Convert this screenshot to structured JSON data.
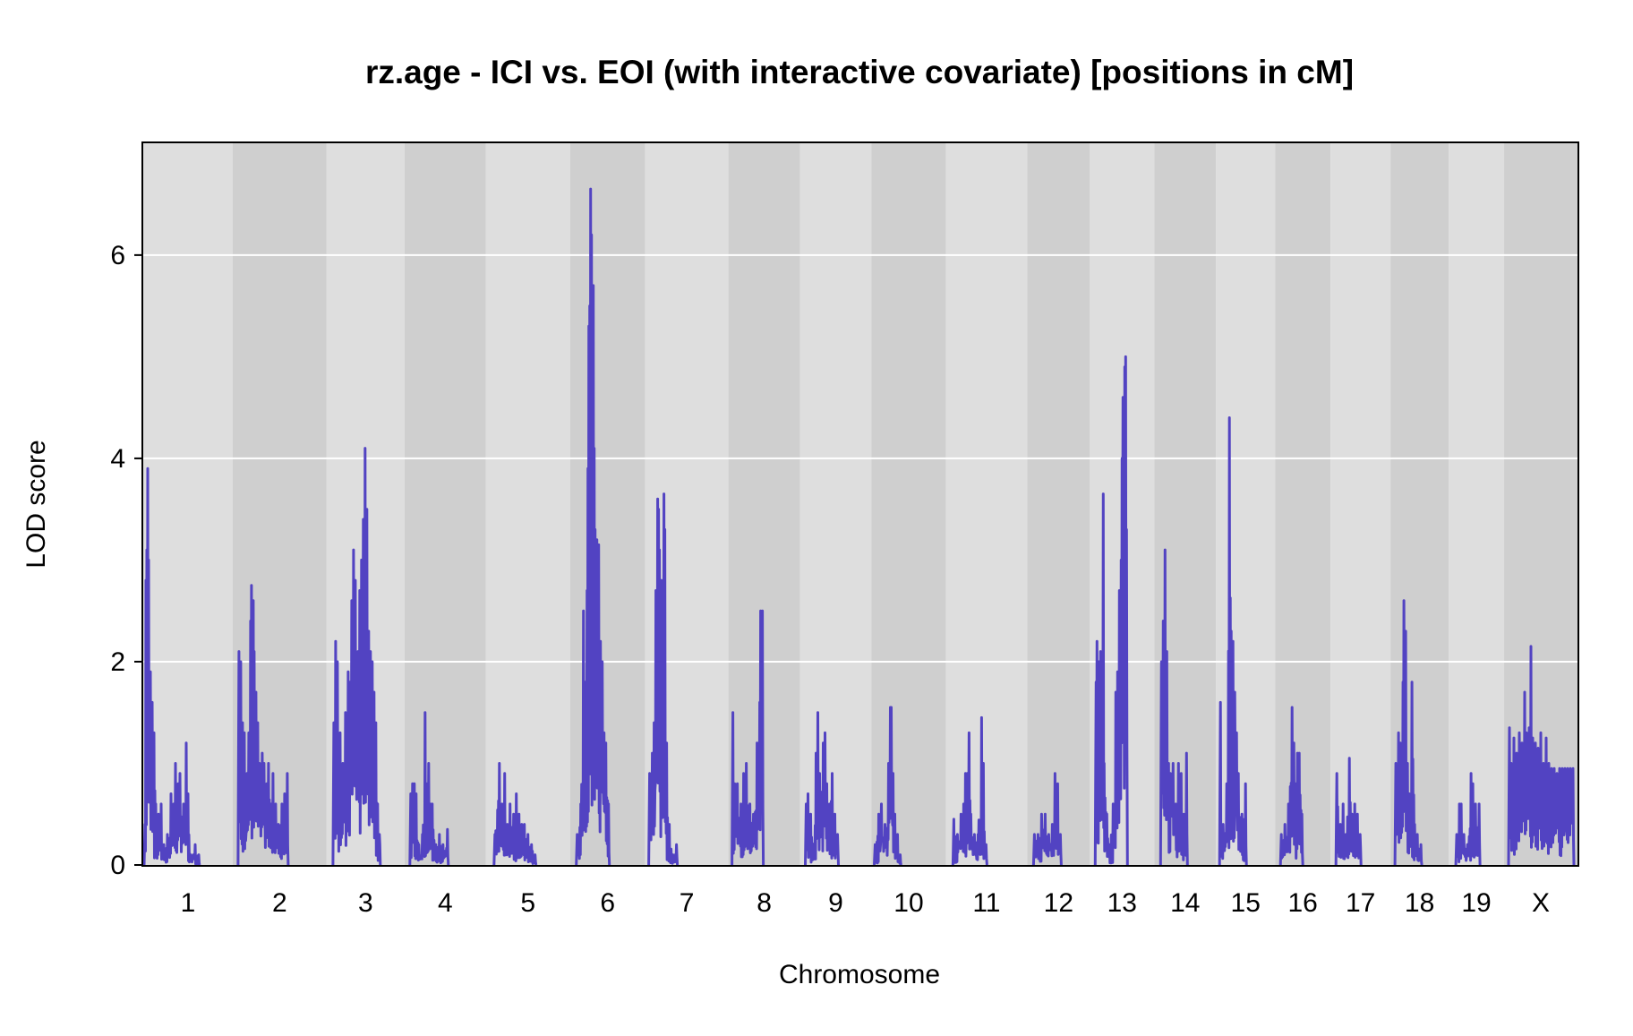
{
  "chart_data": {
    "type": "line",
    "title": "rz.age - ICI vs. EOI (with interactive covariate) [positions in cM]",
    "xlabel": "Chromosome",
    "ylabel": "LOD score",
    "ylim": [
      0,
      7.1
    ],
    "yticks": [
      0,
      2,
      4,
      6
    ],
    "grid": "horizontal",
    "line_color": "#5243c2",
    "band_colors": [
      "#dedede",
      "#cfcfcf"
    ],
    "chromosomes": [
      {
        "label": "1",
        "start": 0,
        "end": 100
      },
      {
        "label": "2",
        "start": 100,
        "end": 205
      },
      {
        "label": "3",
        "start": 205,
        "end": 292
      },
      {
        "label": "4",
        "start": 292,
        "end": 383
      },
      {
        "label": "5",
        "start": 383,
        "end": 477
      },
      {
        "label": "6",
        "start": 477,
        "end": 561
      },
      {
        "label": "7",
        "start": 561,
        "end": 654
      },
      {
        "label": "8",
        "start": 654,
        "end": 734
      },
      {
        "label": "9",
        "start": 734,
        "end": 814
      },
      {
        "label": "10",
        "start": 814,
        "end": 897
      },
      {
        "label": "11",
        "start": 897,
        "end": 988
      },
      {
        "label": "12",
        "start": 988,
        "end": 1058
      },
      {
        "label": "13",
        "start": 1058,
        "end": 1130
      },
      {
        "label": "14",
        "start": 1130,
        "end": 1199
      },
      {
        "label": "15",
        "start": 1199,
        "end": 1265
      },
      {
        "label": "16",
        "start": 1265,
        "end": 1327
      },
      {
        "label": "17",
        "start": 1327,
        "end": 1394
      },
      {
        "label": "18",
        "start": 1394,
        "end": 1459
      },
      {
        "label": "19",
        "start": 1459,
        "end": 1521
      },
      {
        "label": "X",
        "start": 1521,
        "end": 1603
      }
    ],
    "series": [
      {
        "peaks": [
          [
            2,
            0.4
          ],
          [
            3,
            2.8
          ],
          [
            4,
            3.1
          ],
          [
            5,
            3.9
          ],
          [
            6,
            3.0
          ],
          [
            8,
            1.9
          ],
          [
            10,
            1.6
          ],
          [
            12,
            1.3
          ],
          [
            14,
            0.6
          ],
          [
            17,
            0.5
          ],
          [
            20,
            0.6
          ],
          [
            23,
            0.2
          ],
          [
            27,
            0.3
          ],
          [
            31,
            0.7
          ],
          [
            34,
            0.6
          ],
          [
            36,
            1.0
          ],
          [
            39,
            0.8
          ],
          [
            41,
            0.9
          ],
          [
            45,
            0.6
          ],
          [
            48,
            1.2
          ],
          [
            50,
            0.7
          ],
          [
            53,
            0.1
          ],
          [
            58,
            0.2
          ],
          [
            62,
            0.1
          ],
          [
            107,
            2.1
          ],
          [
            109,
            2.0
          ],
          [
            111,
            1.4
          ],
          [
            113,
            1.3
          ],
          [
            116,
            0.9
          ],
          [
            118,
            1.3
          ],
          [
            120,
            2.4
          ],
          [
            121,
            2.75
          ],
          [
            123,
            2.6
          ],
          [
            124,
            2.1
          ],
          [
            126,
            1.7
          ],
          [
            128,
            1.4
          ],
          [
            130,
            1.0
          ],
          [
            133,
            1.1
          ],
          [
            135,
            1.0
          ],
          [
            138,
            0.8
          ],
          [
            140,
            1.0
          ],
          [
            143,
            0.6
          ],
          [
            145,
            0.9
          ],
          [
            148,
            0.6
          ],
          [
            151,
            0.4
          ],
          [
            155,
            0.6
          ],
          [
            158,
            0.7
          ],
          [
            161,
            0.9
          ],
          [
            213,
            1.4
          ],
          [
            215,
            2.2
          ],
          [
            217,
            2.0
          ],
          [
            220,
            1.3
          ],
          [
            223,
            1.0
          ],
          [
            226,
            1.5
          ],
          [
            229,
            1.9
          ],
          [
            231,
            1.8
          ],
          [
            233,
            2.6
          ],
          [
            235,
            3.1
          ],
          [
            237,
            2.8
          ],
          [
            240,
            2.1
          ],
          [
            242,
            2.7
          ],
          [
            244,
            3.0
          ],
          [
            246,
            3.4
          ],
          [
            248,
            4.1
          ],
          [
            250,
            3.5
          ],
          [
            252,
            2.3
          ],
          [
            254,
            2.1
          ],
          [
            256,
            2.0
          ],
          [
            258,
            1.7
          ],
          [
            260,
            1.4
          ],
          [
            262,
            0.6
          ],
          [
            264,
            0.3
          ],
          [
            299,
            0.7
          ],
          [
            301,
            0.8
          ],
          [
            303,
            0.8
          ],
          [
            305,
            0.7
          ],
          [
            308,
            0.2
          ],
          [
            312,
            0.3
          ],
          [
            315,
            1.5
          ],
          [
            317,
            0.8
          ],
          [
            319,
            1.0
          ],
          [
            321,
            0.6
          ],
          [
            323,
            0.6
          ],
          [
            327,
            0.2
          ],
          [
            331,
            0.3
          ],
          [
            335,
            0.2
          ],
          [
            340,
            0.35
          ],
          [
            393,
            0.3
          ],
          [
            398,
            1.0
          ],
          [
            401,
            0.6
          ],
          [
            404,
            0.9
          ],
          [
            407,
            0.4
          ],
          [
            410,
            0.6
          ],
          [
            414,
            0.5
          ],
          [
            417,
            0.7
          ],
          [
            420,
            0.5
          ],
          [
            423,
            0.4
          ],
          [
            426,
            0.4
          ],
          [
            430,
            0.3
          ],
          [
            434,
            0.2
          ],
          [
            438,
            0.1
          ],
          [
            485,
            0.3
          ],
          [
            489,
            0.6
          ],
          [
            492,
            2.5
          ],
          [
            494,
            1.8
          ],
          [
            496,
            2.7
          ],
          [
            497,
            3.9
          ],
          [
            498,
            5.3
          ],
          [
            499,
            5.5
          ],
          [
            500,
            6.65
          ],
          [
            501,
            6.2
          ],
          [
            502,
            5.1
          ],
          [
            503,
            5.7
          ],
          [
            504,
            4.1
          ],
          [
            505,
            3.3
          ],
          [
            507,
            3.2
          ],
          [
            509,
            3.15
          ],
          [
            511,
            2.2
          ],
          [
            513,
            2.0
          ],
          [
            515,
            1.3
          ],
          [
            517,
            1.2
          ],
          [
            520,
            0.6
          ],
          [
            566,
            0.9
          ],
          [
            569,
            1.1
          ],
          [
            571,
            1.4
          ],
          [
            573,
            2.7
          ],
          [
            575,
            3.6
          ],
          [
            576,
            3.5
          ],
          [
            577,
            3.1
          ],
          [
            579,
            2.8
          ],
          [
            581,
            2.6
          ],
          [
            582,
            3.65
          ],
          [
            583,
            3.3
          ],
          [
            585,
            1.2
          ],
          [
            588,
            0.4
          ],
          [
            592,
            0.1
          ],
          [
            596,
            0.2
          ],
          [
            659,
            1.5
          ],
          [
            661,
            0.8
          ],
          [
            664,
            0.8
          ],
          [
            668,
            0.6
          ],
          [
            671,
            0.9
          ],
          [
            674,
            1.0
          ],
          [
            678,
            0.6
          ],
          [
            682,
            0.5
          ],
          [
            686,
            1.2
          ],
          [
            689,
            1.6
          ],
          [
            690,
            2.5
          ],
          [
            692,
            2.5
          ],
          [
            741,
            0.6
          ],
          [
            743,
            0.7
          ],
          [
            746,
            0.5
          ],
          [
            749,
            0.2
          ],
          [
            752,
            1.1
          ],
          [
            754,
            1.5
          ],
          [
            756,
            0.9
          ],
          [
            758,
            0.7
          ],
          [
            760,
            1.2
          ],
          [
            762,
            1.3
          ],
          [
            764,
            0.8
          ],
          [
            767,
            0.6
          ],
          [
            770,
            0.9
          ],
          [
            773,
            0.5
          ],
          [
            776,
            0.3
          ],
          [
            818,
            0.2
          ],
          [
            822,
            0.5
          ],
          [
            825,
            0.6
          ],
          [
            829,
            0.4
          ],
          [
            833,
            1.0
          ],
          [
            835,
            1.55
          ],
          [
            836,
            1.55
          ],
          [
            838,
            0.9
          ],
          [
            840,
            0.5
          ],
          [
            843,
            0.3
          ],
          [
            846,
            0.1
          ],
          [
            906,
            0.45
          ],
          [
            910,
            0.3
          ],
          [
            914,
            0.5
          ],
          [
            917,
            0.6
          ],
          [
            919,
            0.9
          ],
          [
            921,
            0.9
          ],
          [
            923,
            1.3
          ],
          [
            925,
            0.5
          ],
          [
            929,
            0.3
          ],
          [
            933,
            0.3
          ],
          [
            937,
            1.45
          ],
          [
            939,
            1.0
          ],
          [
            942,
            0.2
          ],
          [
            996,
            0.3
          ],
          [
            1000,
            0.3
          ],
          [
            1004,
            0.5
          ],
          [
            1008,
            0.5
          ],
          [
            1012,
            0.3
          ],
          [
            1016,
            0.4
          ],
          [
            1019,
            0.9
          ],
          [
            1022,
            0.8
          ],
          [
            1025,
            0.3
          ],
          [
            1065,
            1.8
          ],
          [
            1066,
            2.2
          ],
          [
            1068,
            2.0
          ],
          [
            1070,
            2.1
          ],
          [
            1072,
            1.6
          ],
          [
            1073,
            3.65
          ],
          [
            1074,
            1.0
          ],
          [
            1077,
            0.5
          ],
          [
            1080,
            0.2
          ],
          [
            1084,
            0.6
          ],
          [
            1087,
            1.7
          ],
          [
            1089,
            1.9
          ],
          [
            1091,
            2.7
          ],
          [
            1093,
            3.0
          ],
          [
            1094,
            4.0
          ],
          [
            1095,
            4.6
          ],
          [
            1097,
            4.9
          ],
          [
            1098,
            5.0
          ],
          [
            1099,
            3.3
          ],
          [
            1138,
            2.0
          ],
          [
            1140,
            2.4
          ],
          [
            1142,
            3.1
          ],
          [
            1144,
            2.1
          ],
          [
            1146,
            1.0
          ],
          [
            1148,
            0.9
          ],
          [
            1151,
            1.0
          ],
          [
            1154,
            0.6
          ],
          [
            1157,
            1.0
          ],
          [
            1160,
            0.9
          ],
          [
            1163,
            0.5
          ],
          [
            1166,
            1.1
          ],
          [
            1204,
            1.6
          ],
          [
            1207,
            0.4
          ],
          [
            1211,
            0.8
          ],
          [
            1214,
            4.4
          ],
          [
            1216,
            2.3
          ],
          [
            1218,
            2.2
          ],
          [
            1220,
            1.7
          ],
          [
            1222,
            1.3
          ],
          [
            1224,
            0.9
          ],
          [
            1228,
            0.5
          ],
          [
            1232,
            0.8
          ],
          [
            1272,
            0.3
          ],
          [
            1276,
            0.4
          ],
          [
            1280,
            0.6
          ],
          [
            1284,
            1.55
          ],
          [
            1286,
            1.2
          ],
          [
            1288,
            0.8
          ],
          [
            1290,
            1.1
          ],
          [
            1292,
            1.1
          ],
          [
            1295,
            0.5
          ],
          [
            1334,
            0.9
          ],
          [
            1338,
            0.4
          ],
          [
            1341,
            0.6
          ],
          [
            1344,
            0.3
          ],
          [
            1348,
            1.05
          ],
          [
            1351,
            0.5
          ],
          [
            1354,
            0.6
          ],
          [
            1357,
            0.5
          ],
          [
            1360,
            0.3
          ],
          [
            1400,
            1.0
          ],
          [
            1403,
            1.3
          ],
          [
            1405,
            1.2
          ],
          [
            1408,
            1.8
          ],
          [
            1409,
            2.6
          ],
          [
            1411,
            2.3
          ],
          [
            1413,
            1.0
          ],
          [
            1415,
            0.7
          ],
          [
            1418,
            1.8
          ],
          [
            1421,
            0.4
          ],
          [
            1424,
            0.3
          ],
          [
            1428,
            0.2
          ],
          [
            1468,
            0.3
          ],
          [
            1471,
            0.6
          ],
          [
            1473,
            0.6
          ],
          [
            1476,
            0.3
          ],
          [
            1480,
            0.2
          ],
          [
            1484,
            0.9
          ],
          [
            1486,
            0.8
          ],
          [
            1489,
            0.6
          ],
          [
            1493,
            0.6
          ],
          [
            1527,
            1.35
          ],
          [
            1529,
            1.0
          ],
          [
            1532,
            1.25
          ],
          [
            1535,
            1.1
          ],
          [
            1538,
            1.3
          ],
          [
            1541,
            1.2
          ],
          [
            1544,
            1.7
          ],
          [
            1546,
            1.3
          ],
          [
            1549,
            1.35
          ],
          [
            1551,
            2.15
          ],
          [
            1553,
            1.25
          ],
          [
            1556,
            1.2
          ],
          [
            1559,
            1.15
          ],
          [
            1562,
            1.3
          ],
          [
            1565,
            1.0
          ],
          [
            1568,
            1.25
          ],
          [
            1571,
            1.0
          ],
          [
            1574,
            0.95
          ],
          [
            1577,
            0.95
          ],
          [
            1580,
            0.9
          ],
          [
            1583,
            0.95
          ],
          [
            1586,
            0.95
          ],
          [
            1589,
            0.95
          ],
          [
            1592,
            0.95
          ],
          [
            1595,
            0.95
          ],
          [
            1598,
            0.95
          ]
        ]
      }
    ]
  }
}
